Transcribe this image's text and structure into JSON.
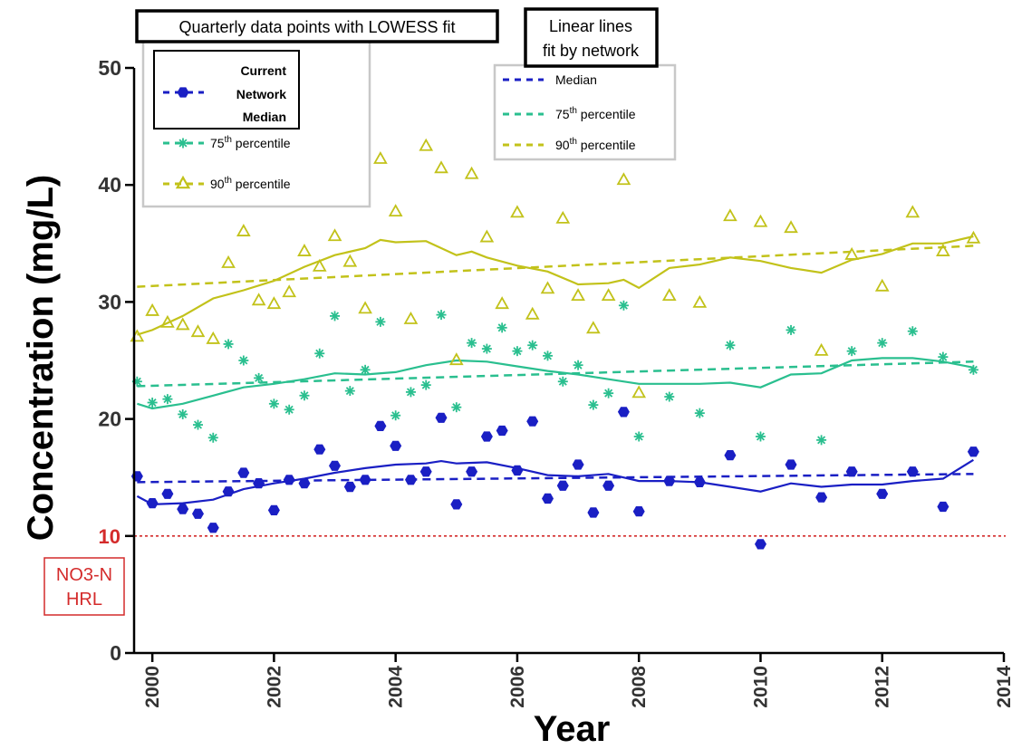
{
  "chart_data": {
    "type": "scatter",
    "xlabel": "Year",
    "ylabel": "Concentration (mg/L)",
    "xlim": [
      1999.7,
      2014
    ],
    "ylim": [
      0,
      50
    ],
    "x_ticks": [
      2000,
      2002,
      2004,
      2006,
      2008,
      2010,
      2012,
      2014
    ],
    "y_ticks": [
      0,
      10,
      20,
      30,
      40,
      50
    ],
    "reference_line": {
      "value": 10,
      "label": "10",
      "box_label": [
        "NO3-N",
        "HRL"
      ],
      "color": "#d42b2b"
    },
    "legend_points": {
      "title": "Quarterly data points with LOWESS fit",
      "items": [
        {
          "series": "median",
          "label": [
            "Current",
            "Network",
            "Median"
          ]
        },
        {
          "series": "p75",
          "label": "75",
          "sup": "th",
          "suffix": " percentile"
        },
        {
          "series": "p90",
          "label": "90",
          "sup": "th",
          "suffix": " percentile"
        }
      ]
    },
    "legend_lines": {
      "title": [
        "Linear lines",
        "fit by network"
      ],
      "items": [
        {
          "series": "median",
          "label": "Median"
        },
        {
          "series": "p75",
          "label": "75",
          "sup": "th",
          "suffix": " percentile"
        },
        {
          "series": "p90",
          "label": "90",
          "sup": "th",
          "suffix": " percentile"
        }
      ]
    },
    "series": [
      {
        "key": "median",
        "color": "#1a1fc4",
        "marker": "hexagon",
        "points": [
          [
            1999.75,
            15.1
          ],
          [
            2000,
            12.8
          ],
          [
            2000.25,
            13.6
          ],
          [
            2000.5,
            12.3
          ],
          [
            2000.75,
            11.9
          ],
          [
            2001,
            10.7
          ],
          [
            2001.25,
            13.8
          ],
          [
            2001.5,
            15.4
          ],
          [
            2001.75,
            14.5
          ],
          [
            2002,
            12.2
          ],
          [
            2002.25,
            14.8
          ],
          [
            2002.5,
            14.5
          ],
          [
            2002.75,
            17.4
          ],
          [
            2003,
            16.0
          ],
          [
            2003.25,
            14.2
          ],
          [
            2003.5,
            14.8
          ],
          [
            2003.75,
            19.4
          ],
          [
            2004,
            17.7
          ],
          [
            2004.25,
            14.8
          ],
          [
            2004.5,
            15.5
          ],
          [
            2004.75,
            20.1
          ],
          [
            2005,
            12.7
          ],
          [
            2005.25,
            15.5
          ],
          [
            2005.5,
            18.5
          ],
          [
            2005.75,
            19.0
          ],
          [
            2006,
            15.6
          ],
          [
            2006.25,
            19.8
          ],
          [
            2006.5,
            13.2
          ],
          [
            2006.75,
            14.3
          ],
          [
            2007,
            16.1
          ],
          [
            2007.25,
            12.0
          ],
          [
            2007.5,
            14.3
          ],
          [
            2007.75,
            20.6
          ],
          [
            2008,
            12.1
          ],
          [
            2008.5,
            14.7
          ],
          [
            2009,
            14.6
          ],
          [
            2009.5,
            16.9
          ],
          [
            2010,
            9.3
          ],
          [
            2010.5,
            16.1
          ],
          [
            2011,
            13.3
          ],
          [
            2011.5,
            15.5
          ],
          [
            2012,
            13.6
          ],
          [
            2012.5,
            15.5
          ],
          [
            2013,
            12.5
          ],
          [
            2013.5,
            17.2
          ]
        ],
        "lowess": [
          [
            1999.75,
            13.4
          ],
          [
            2000,
            12.7
          ],
          [
            2000.5,
            12.8
          ],
          [
            2001,
            13.1
          ],
          [
            2001.5,
            14.0
          ],
          [
            2002,
            14.5
          ],
          [
            2002.5,
            14.9
          ],
          [
            2003,
            15.4
          ],
          [
            2003.5,
            15.8
          ],
          [
            2004,
            16.1
          ],
          [
            2004.5,
            16.2
          ],
          [
            2004.75,
            16.4
          ],
          [
            2005,
            16.2
          ],
          [
            2005.5,
            16.3
          ],
          [
            2006,
            15.8
          ],
          [
            2006.5,
            15.2
          ],
          [
            2007,
            15.1
          ],
          [
            2007.5,
            15.3
          ],
          [
            2008,
            14.7
          ],
          [
            2008.5,
            14.7
          ],
          [
            2009,
            14.6
          ],
          [
            2009.5,
            14.2
          ],
          [
            2010,
            13.8
          ],
          [
            2010.5,
            14.5
          ],
          [
            2011,
            14.2
          ],
          [
            2011.5,
            14.4
          ],
          [
            2012,
            14.4
          ],
          [
            2012.5,
            14.7
          ],
          [
            2013,
            14.9
          ],
          [
            2013.5,
            16.5
          ]
        ],
        "linear": [
          [
            1999.75,
            14.6
          ],
          [
            2013.5,
            15.3
          ]
        ]
      },
      {
        "key": "p75",
        "color": "#2abf8f",
        "marker": "asterisk",
        "points": [
          [
            1999.75,
            23.2
          ],
          [
            2000,
            21.4
          ],
          [
            2000.25,
            21.7
          ],
          [
            2000.5,
            20.4
          ],
          [
            2000.75,
            19.5
          ],
          [
            2001,
            18.4
          ],
          [
            2001.25,
            26.4
          ],
          [
            2001.5,
            25.0
          ],
          [
            2001.75,
            23.5
          ],
          [
            2002,
            21.3
          ],
          [
            2002.25,
            20.8
          ],
          [
            2002.5,
            22.0
          ],
          [
            2002.75,
            25.6
          ],
          [
            2003,
            28.8
          ],
          [
            2003.25,
            22.4
          ],
          [
            2003.5,
            24.2
          ],
          [
            2003.75,
            28.3
          ],
          [
            2004,
            20.3
          ],
          [
            2004.25,
            22.3
          ],
          [
            2004.5,
            22.9
          ],
          [
            2004.75,
            28.9
          ],
          [
            2005,
            21.0
          ],
          [
            2005.25,
            26.5
          ],
          [
            2005.5,
            26.0
          ],
          [
            2005.75,
            27.8
          ],
          [
            2006,
            25.8
          ],
          [
            2006.25,
            26.3
          ],
          [
            2006.5,
            25.4
          ],
          [
            2006.75,
            23.2
          ],
          [
            2007,
            24.6
          ],
          [
            2007.25,
            21.2
          ],
          [
            2007.5,
            22.2
          ],
          [
            2007.75,
            29.7
          ],
          [
            2008,
            18.5
          ],
          [
            2008.5,
            21.9
          ],
          [
            2009,
            20.5
          ],
          [
            2009.5,
            26.3
          ],
          [
            2010,
            18.5
          ],
          [
            2010.5,
            27.6
          ],
          [
            2011,
            18.2
          ],
          [
            2011.5,
            25.8
          ],
          [
            2012,
            26.5
          ],
          [
            2012.5,
            27.5
          ],
          [
            2013,
            25.3
          ],
          [
            2013.5,
            24.2
          ]
        ],
        "lowess": [
          [
            1999.75,
            21.3
          ],
          [
            2000,
            20.9
          ],
          [
            2000.5,
            21.3
          ],
          [
            2001,
            22.0
          ],
          [
            2001.5,
            22.7
          ],
          [
            2002,
            23.0
          ],
          [
            2002.5,
            23.4
          ],
          [
            2003,
            23.9
          ],
          [
            2003.5,
            23.8
          ],
          [
            2004,
            24.0
          ],
          [
            2004.5,
            24.6
          ],
          [
            2005,
            25.0
          ],
          [
            2005.5,
            24.9
          ],
          [
            2006,
            24.5
          ],
          [
            2006.5,
            24.1
          ],
          [
            2007,
            23.8
          ],
          [
            2007.5,
            23.4
          ],
          [
            2008,
            23.0
          ],
          [
            2008.5,
            23.0
          ],
          [
            2009,
            23.0
          ],
          [
            2009.5,
            23.1
          ],
          [
            2010,
            22.7
          ],
          [
            2010.5,
            23.8
          ],
          [
            2011,
            23.9
          ],
          [
            2011.5,
            25.0
          ],
          [
            2012,
            25.2
          ],
          [
            2012.5,
            25.2
          ],
          [
            2013,
            24.9
          ],
          [
            2013.5,
            24.4
          ]
        ],
        "linear": [
          [
            1999.75,
            22.8
          ],
          [
            2013.5,
            24.9
          ]
        ]
      },
      {
        "key": "p90",
        "color": "#c2c21a",
        "marker": "triangle",
        "points": [
          [
            1999.75,
            27.0
          ],
          [
            2000,
            29.2
          ],
          [
            2000.25,
            28.2
          ],
          [
            2000.5,
            28.0
          ],
          [
            2000.75,
            27.4
          ],
          [
            2001,
            26.8
          ],
          [
            2001.25,
            33.3
          ],
          [
            2001.5,
            36.0
          ],
          [
            2001.75,
            30.1
          ],
          [
            2002,
            29.8
          ],
          [
            2002.25,
            30.8
          ],
          [
            2002.5,
            34.3
          ],
          [
            2002.75,
            33.0
          ],
          [
            2003,
            35.6
          ],
          [
            2003.25,
            33.4
          ],
          [
            2003.5,
            29.4
          ],
          [
            2003.75,
            42.2
          ],
          [
            2004,
            37.7
          ],
          [
            2004.25,
            28.5
          ],
          [
            2004.5,
            43.3
          ],
          [
            2004.75,
            41.4
          ],
          [
            2005,
            25.0
          ],
          [
            2005.25,
            40.9
          ],
          [
            2005.5,
            35.5
          ],
          [
            2005.75,
            29.8
          ],
          [
            2006,
            37.6
          ],
          [
            2006.25,
            28.9
          ],
          [
            2006.5,
            31.1
          ],
          [
            2006.75,
            37.1
          ],
          [
            2007,
            30.5
          ],
          [
            2007.25,
            27.7
          ],
          [
            2007.5,
            30.5
          ],
          [
            2007.75,
            40.4
          ],
          [
            2008,
            22.2
          ],
          [
            2008.5,
            30.5
          ],
          [
            2009,
            29.9
          ],
          [
            2009.5,
            37.3
          ],
          [
            2010,
            36.8
          ],
          [
            2010.5,
            36.3
          ],
          [
            2011,
            25.8
          ],
          [
            2011.5,
            34.0
          ],
          [
            2012,
            31.3
          ],
          [
            2012.5,
            37.6
          ],
          [
            2013,
            34.3
          ],
          [
            2013.5,
            35.4
          ]
        ],
        "lowess": [
          [
            1999.75,
            27.2
          ],
          [
            2000,
            27.6
          ],
          [
            2000.5,
            28.8
          ],
          [
            2001,
            30.3
          ],
          [
            2001.5,
            31.0
          ],
          [
            2002,
            31.8
          ],
          [
            2002.5,
            33.0
          ],
          [
            2003,
            34.0
          ],
          [
            2003.5,
            34.6
          ],
          [
            2003.75,
            35.3
          ],
          [
            2004,
            35.1
          ],
          [
            2004.5,
            35.2
          ],
          [
            2005,
            34.0
          ],
          [
            2005.25,
            34.3
          ],
          [
            2005.5,
            33.8
          ],
          [
            2006,
            33.1
          ],
          [
            2006.5,
            32.6
          ],
          [
            2007,
            31.5
          ],
          [
            2007.5,
            31.6
          ],
          [
            2007.75,
            31.9
          ],
          [
            2008,
            31.2
          ],
          [
            2008.5,
            32.9
          ],
          [
            2009,
            33.2
          ],
          [
            2009.5,
            33.8
          ],
          [
            2010,
            33.5
          ],
          [
            2010.5,
            32.9
          ],
          [
            2011,
            32.5
          ],
          [
            2011.5,
            33.6
          ],
          [
            2012,
            34.1
          ],
          [
            2012.5,
            35.0
          ],
          [
            2013,
            35.0
          ],
          [
            2013.5,
            35.6
          ]
        ],
        "linear": [
          [
            1999.75,
            31.3
          ],
          [
            2013.5,
            34.8
          ]
        ]
      }
    ]
  }
}
